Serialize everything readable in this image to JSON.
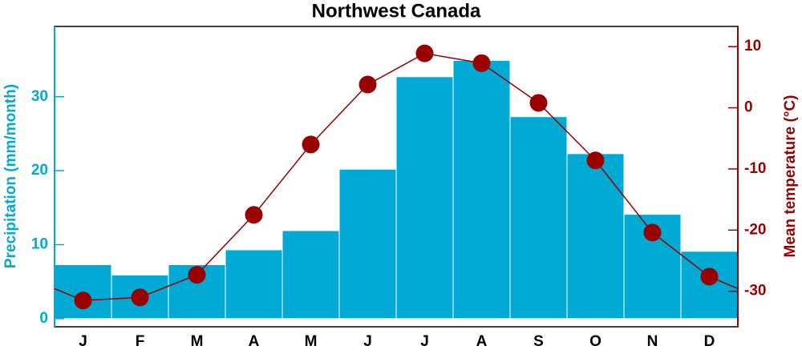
{
  "chart_data": {
    "type": "bar-line",
    "title": "Northwest Canada",
    "categories": [
      "J",
      "F",
      "M",
      "A",
      "M",
      "J",
      "J",
      "A",
      "S",
      "O",
      "N",
      "D"
    ],
    "series": [
      {
        "name": "Precipitation (mm/month)",
        "type": "bar",
        "color": "#00aad4",
        "values": [
          7.3,
          5.9,
          7.3,
          9.3,
          11.9,
          20.2,
          32.7,
          34.9,
          27.3,
          22.3,
          14.1,
          9.1
        ]
      },
      {
        "name": "Mean temperature (°C)",
        "type": "line",
        "axis": "y2",
        "color": "#990000",
        "values": [
          -31.5,
          -31.0,
          -27.3,
          -17.5,
          -6.0,
          3.8,
          8.9,
          7.3,
          0.8,
          -8.6,
          -20.4,
          -27.6
        ]
      }
    ],
    "ylim": [
      -1.1,
      39.5
    ],
    "yticks": [
      0,
      10,
      20,
      30
    ],
    "y2lim": [
      -35.8,
      13.3
    ],
    "y2ticks": [
      -30,
      -20,
      -10,
      0,
      10
    ]
  }
}
